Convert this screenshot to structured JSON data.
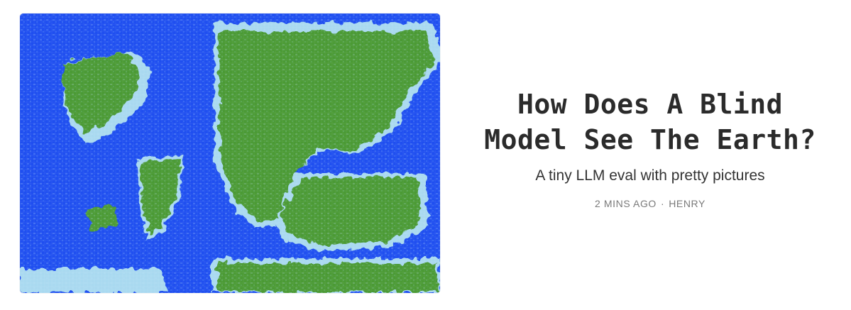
{
  "post": {
    "title_line1": "How Does A Blind",
    "title_line2": "Model See The Earth?",
    "subtitle": "A tiny LLM eval with pretty pictures",
    "time": "2 MINS AGO",
    "separator": "·",
    "author": "HENRY"
  },
  "thumbnail": {
    "icon": "world-map-pixel-image",
    "colors": {
      "ocean": "#1f4ff0",
      "land": "#4c9a34",
      "coast": "#a9d9f0"
    }
  }
}
